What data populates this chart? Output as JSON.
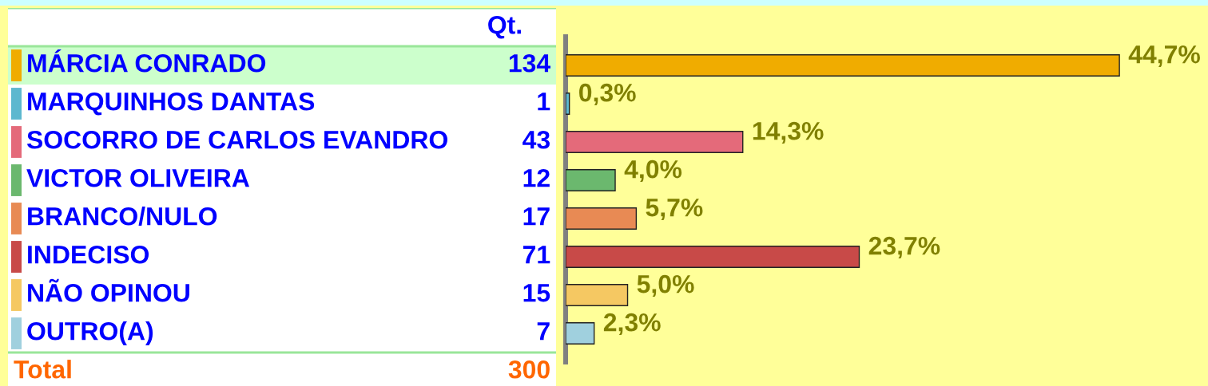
{
  "chart_data": [
    {
      "type": "other",
      "title": "Qt.",
      "categories": [
        "MÁRCIA CONRADO",
        "MARQUINHOS DANTAS",
        "SOCORRO DE CARLOS EVANDRO",
        "VICTOR OLIVEIRA",
        "BRANCO/NULO",
        "INDECISO",
        "NÃO OPINOU",
        "OUTRO(A)"
      ],
      "values": [
        134,
        1,
        43,
        12,
        17,
        71,
        15,
        7
      ],
      "data_labels": true,
      "annotations": [
        "Total",
        "300"
      ]
    },
    {
      "type": "bar",
      "orientation": "horizontal",
      "categories": [
        null,
        null,
        null,
        null,
        null,
        null,
        null,
        null
      ],
      "values": [
        44.7,
        0.3,
        14.3,
        4.0,
        5.7,
        23.7,
        5.0,
        2.3
      ],
      "colors": [
        "#f0ac00",
        "#5db8cf",
        "#e46a7a",
        "#6bb86e",
        "#e88a54",
        "#c84a48",
        "#f5c862",
        "#a0d0de"
      ],
      "value_labels": [
        "44,7%",
        "0,3%",
        "14,3%",
        "4,0%",
        "5,7%",
        "23,7%",
        "5,0%",
        "2,3%"
      ]
    }
  ]
}
